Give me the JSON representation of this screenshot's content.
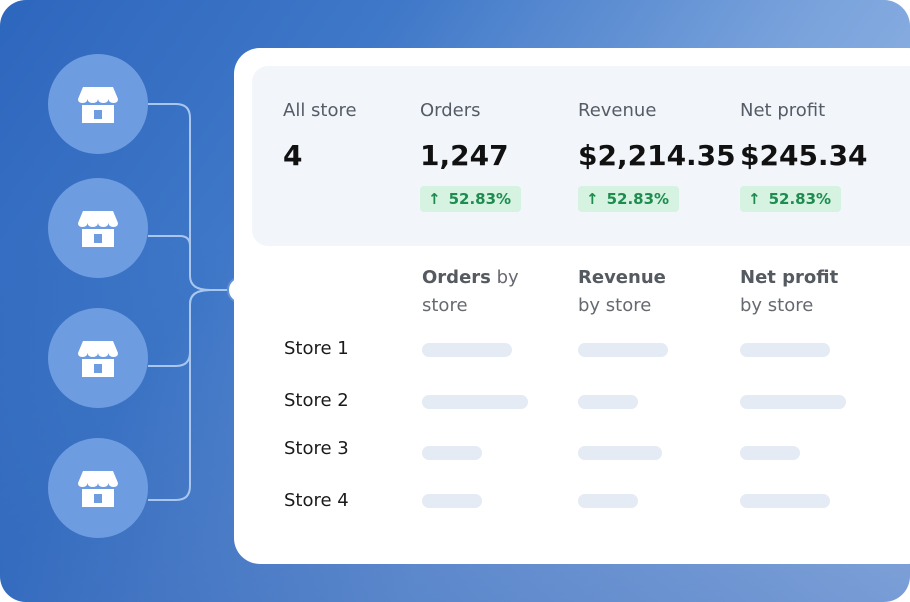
{
  "summary": {
    "all_store": {
      "label": "All store",
      "value": "4"
    },
    "orders": {
      "label": "Orders",
      "value": "1,247",
      "change": "52.83%"
    },
    "revenue": {
      "label": "Revenue",
      "value": "$2,214.35",
      "change": "52.83%"
    },
    "net_profit": {
      "label": "Net profit",
      "value": "$245.34",
      "change": "52.83%"
    }
  },
  "columns": {
    "orders": {
      "bold": "Orders",
      "rest": " by",
      "line2": "store"
    },
    "revenue": {
      "bold": "Revenue",
      "line2": "by store"
    },
    "net_profit": {
      "bold": "Net profit",
      "line2": "by store"
    }
  },
  "stores": [
    {
      "name": "Store 1"
    },
    {
      "name": "Store 2"
    },
    {
      "name": "Store 3"
    },
    {
      "name": "Store 4"
    }
  ],
  "icons": {
    "store": "store-icon",
    "change": "arrow-up-icon"
  },
  "colors": {
    "accent": "#2d66bd",
    "positive": "#1e8c4e",
    "positive_bg": "#d6f2e0"
  }
}
